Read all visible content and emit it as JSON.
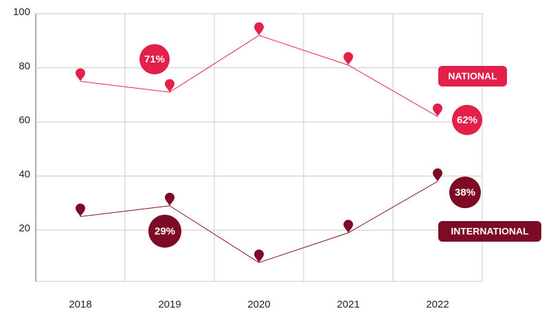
{
  "chart_data": {
    "type": "line",
    "categories": [
      "2018",
      "2019",
      "2020",
      "2021",
      "2022"
    ],
    "series": [
      {
        "name": "NATIONAL",
        "color": "#e3204a",
        "values": [
          75,
          71,
          92,
          81,
          62
        ],
        "value_labels": [
          null,
          "71%",
          null,
          null,
          "62%"
        ]
      },
      {
        "name": "INTERNATIONAL",
        "color": "#7d0b26",
        "values": [
          25,
          29,
          8,
          19,
          38
        ],
        "value_labels": [
          null,
          "29%",
          null,
          null,
          "38%"
        ]
      }
    ],
    "ylim": [
      0,
      100
    ],
    "yticks": [
      20,
      40,
      60,
      80,
      100
    ],
    "grid": true
  }
}
